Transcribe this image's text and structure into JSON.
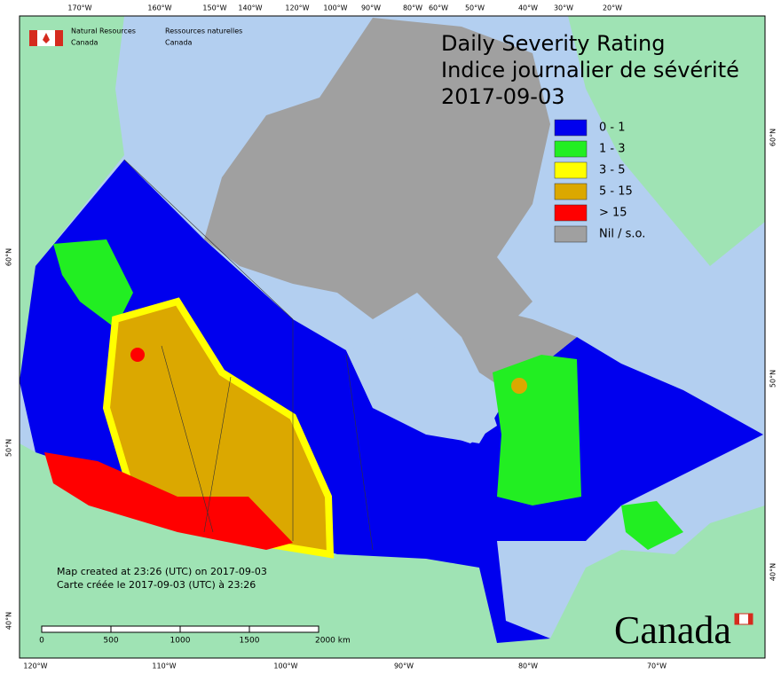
{
  "header": {
    "agency_en": [
      "Natural Resources",
      "Canada"
    ],
    "agency_fr": [
      "Ressources naturelles",
      "Canada"
    ],
    "title": [
      "Daily Severity Rating",
      "Indice journalier de sévérité",
      "2017-09-03"
    ]
  },
  "legend": [
    {
      "label": "0 - 1",
      "color": "#0000ee"
    },
    {
      "label": "1 - 3",
      "color": "#22ee22"
    },
    {
      "label": "3 - 5",
      "color": "#ffff00"
    },
    {
      "label": "5 - 15",
      "color": "#dba800"
    },
    {
      "label": "> 15",
      "color": "#ff0000"
    },
    {
      "label": "Nil / s.o.",
      "color": "#a0a0a0"
    }
  ],
  "graticule": {
    "top": [
      "170°W",
      "160°W",
      "150°W",
      "140°W",
      "120°W",
      "100°W",
      "90°W",
      "80°W",
      "60°W",
      "50°W",
      "40°W",
      "30°W",
      "20°W"
    ],
    "bottom": [
      "120°W",
      "110°W",
      "100°W",
      "90°W",
      "80°W",
      "70°W"
    ],
    "left": [
      "60°N",
      "50°N",
      "40°N"
    ],
    "right": [
      "60°N",
      "50°N",
      "40°N"
    ]
  },
  "scale_bar": [
    "0",
    "500",
    "1000",
    "1500",
    "2000 km"
  ],
  "credits": [
    "Map created at 23:26 (UTC) on 2017-09-03",
    "Carte créée le 2017-09-03 (UTC) à 23:26"
  ],
  "wordmark": "Canada"
}
